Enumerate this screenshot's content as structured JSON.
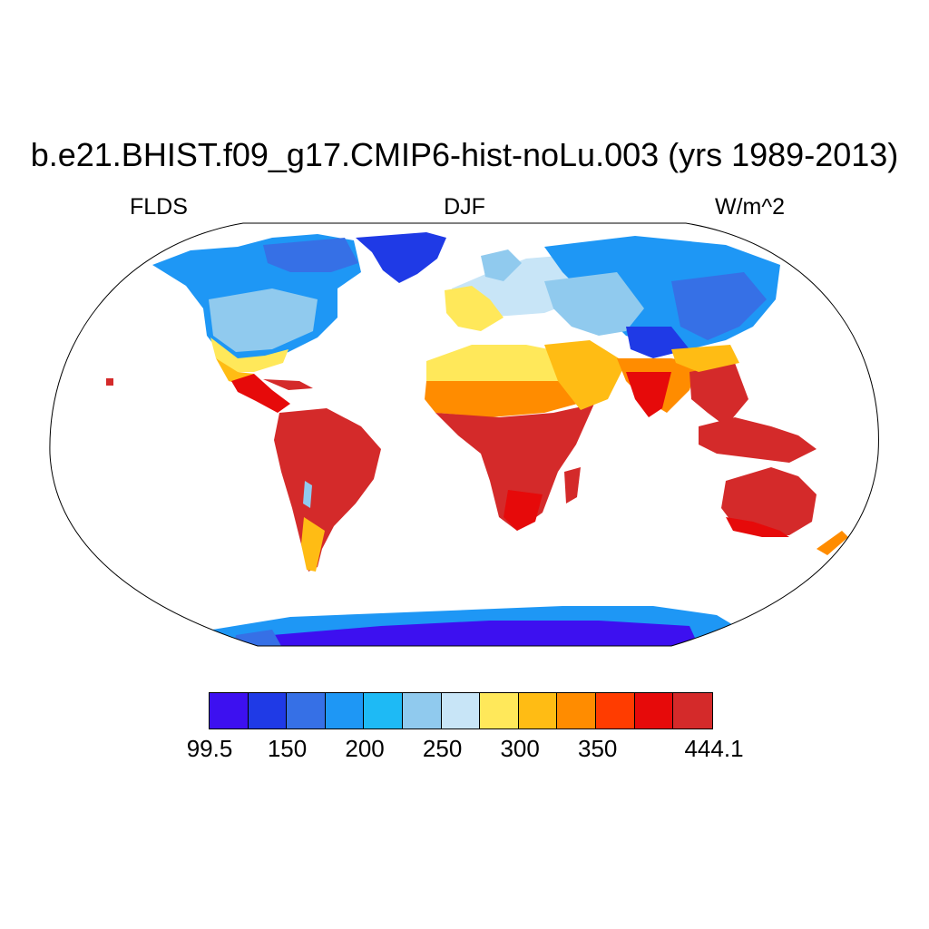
{
  "title": "b.e21.BHIST.f09_g17.CMIP6-hist-noLu.003 (yrs 1989-2013)",
  "left_label": "FLDS",
  "center_label": "DJF",
  "right_label": "W/m^2",
  "colorbar": {
    "colors": [
      "#3d10f0",
      "#1f3ae6",
      "#3670e6",
      "#1e97f5",
      "#1ebaf5",
      "#90caee",
      "#c8e5f7",
      "#ffe85a",
      "#ffbc14",
      "#ff8c00",
      "#ff3c00",
      "#e60a0a",
      "#d42a2a"
    ],
    "tick_labels": [
      "99.5",
      "150",
      "200",
      "250",
      "300",
      "350",
      "444.1"
    ],
    "tick_boundaries": [
      0,
      2,
      4,
      6,
      8,
      10,
      13
    ]
  },
  "map": {
    "projection": "Robinson",
    "ocean_color": "#ffffff",
    "coastline_color": "#000000"
  }
}
